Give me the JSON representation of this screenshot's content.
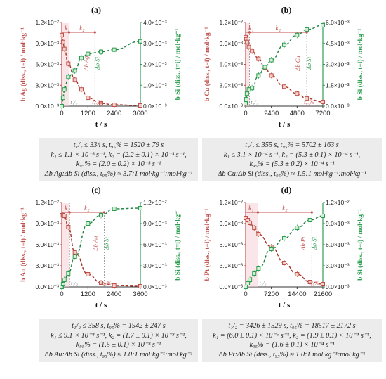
{
  "chart_data": [
    {
      "type": "scatter",
      "label": "(a)",
      "xlabel": "t / s",
      "ylabel_left": "b Ag (diss., t=i) / mol·kg⁻¹",
      "ylabel_right": "b Si (diss., t=i) / mol·kg⁻¹",
      "xlim": [
        0,
        3600
      ],
      "xticks": [
        "0",
        "1200",
        "2400",
        "3600"
      ],
      "ylim_left": [
        0,
        0.012
      ],
      "yticks_left": [
        "0.0×10⁻³",
        "3.0×10⁻³",
        "6.0×10⁻³",
        "9.0×10⁻³",
        "1.2×10⁻²"
      ],
      "ylim_right": [
        0,
        0.004
      ],
      "yticks_right": [
        "0.0×10⁻³",
        "1.0×10⁻³",
        "2.0×10⁻³",
        "3.0×10⁻³",
        "4.0×10⁻³"
      ],
      "series": [
        {
          "name": "Ag",
          "axis": "left",
          "color": "#c0504d",
          "x": [
            0,
            60,
            120,
            300,
            600,
            900,
            1200,
            1800,
            2400,
            3600
          ],
          "y": [
            0.0102,
            0.0092,
            0.0082,
            0.0061,
            0.0038,
            0.0024,
            0.0012,
            0.0004,
            0.0002,
            0.0001
          ]
        },
        {
          "name": "Si",
          "axis": "right",
          "color": "#2e9e50",
          "x": [
            0,
            60,
            120,
            300,
            600,
            900,
            1200,
            1800,
            2400,
            3600
          ],
          "y": [
            0.0,
            0.0004,
            0.0008,
            0.0014,
            0.0017,
            0.0023,
            0.0025,
            0.0026,
            0.0027,
            0.0031
          ]
        }
      ],
      "rate_labels": [
        "k₁",
        "k₂"
      ],
      "annotations": [
        "t₁/₂",
        "t₉₅%",
        "Δb Ag",
        "Δb Si"
      ],
      "t_half": 334,
      "t_95": 1520,
      "caption": [
        "t₁/₂ ≤ 334 s, t₉₅% = 1520 ± 79 s",
        "k₁ ≤ 1.1 × 10⁻³ s⁻¹, k₂ = (2.2 ± 0.1) × 10⁻³ s⁻¹,",
        "k₉₅% = (2.0 ± 0.2) × 10⁻³ s⁻¹",
        "Δb Ag:Δb Si (diss., t₉₅%) ≈ 3.7:1 mol·kg⁻¹:mol·kg⁻¹"
      ]
    },
    {
      "type": "scatter",
      "label": "(b)",
      "xlabel": "t / s",
      "ylabel_left": "b Cu (diss., t=i) / mol·kg⁻¹",
      "ylabel_right": "b Si (diss., t=i) / mol·kg⁻¹",
      "xlim": [
        0,
        7200
      ],
      "xticks": [
        "0",
        "2400",
        "4800",
        "7200"
      ],
      "ylim_left": [
        0,
        0.012
      ],
      "yticks_left": [
        "0.0×10⁻³",
        "3.0×10⁻³",
        "6.0×10⁻³",
        "9.0×10⁻³",
        "1.2×10⁻²"
      ],
      "ylim_right": [
        0,
        0.006
      ],
      "yticks_right": [
        "0.0×10⁻³",
        "1.5×10⁻³",
        "3.0×10⁻³",
        "4.5×10⁻³",
        "6.0×10⁻³"
      ],
      "series": [
        {
          "name": "Cu",
          "axis": "left",
          "color": "#c0504d",
          "x": [
            0,
            60,
            120,
            300,
            600,
            1200,
            1800,
            2400,
            3600,
            4800,
            5700,
            7200
          ],
          "y": [
            0.0099,
            0.0096,
            0.0092,
            0.0085,
            0.0079,
            0.0068,
            0.0055,
            0.0044,
            0.0028,
            0.0018,
            0.0011,
            0.0006
          ]
        },
        {
          "name": "Si",
          "axis": "right",
          "color": "#2e9e50",
          "x": [
            0,
            60,
            120,
            300,
            600,
            1200,
            1800,
            2400,
            3600,
            4800,
            5700,
            7200
          ],
          "y": [
            0.0002,
            0.0005,
            0.0009,
            0.0012,
            0.0013,
            0.0022,
            0.0028,
            0.0033,
            0.0044,
            0.0051,
            0.0055,
            0.0058
          ]
        }
      ],
      "rate_labels": [
        "k₁",
        "k₂"
      ],
      "annotations": [
        "t₁/₂",
        "t₉₅%",
        "Δb Cu",
        "Δb Si"
      ],
      "t_half": 355,
      "t_95": 5702,
      "caption": [
        "t₁/₂ ≤ 355 s, t₉₅% = 5702 ± 163 s",
        "k₁ ≤ 3.1 × 10⁻⁴ s⁻¹, k₂ = (5.3 ± 0.1) × 10⁻⁴ s⁻¹,",
        "k₉₅% = (5.3 ± 0.2) × 10⁻⁴ s⁻¹",
        "Δb Cu:Δb Si (diss., t₉₅%) ≈ 1.5:1 mol·kg⁻¹:mol·kg⁻¹"
      ]
    },
    {
      "type": "scatter",
      "label": "(c)",
      "xlabel": "t / s",
      "ylabel_left": "b Au (diss., t=i) / mol·kg⁻¹",
      "ylabel_right": "b Si (diss., t=i) / mol·kg⁻¹",
      "xlim": [
        0,
        3600
      ],
      "xticks": [
        "0",
        "1200",
        "2400",
        "3600"
      ],
      "ylim_left": [
        0,
        0.012
      ],
      "yticks_left": [
        "0.0×10⁻³",
        "3.0×10⁻³",
        "6.0×10⁻³",
        "9.0×10⁻³",
        "1.2×10⁻²"
      ],
      "ylim_right": [
        0,
        0.012
      ],
      "yticks_right": [
        "0.0×10⁻³",
        "3.0×10⁻³",
        "6.0×10⁻³",
        "9.0×10⁻³",
        "1.2×10⁻²"
      ],
      "series": [
        {
          "name": "Au",
          "axis": "left",
          "color": "#c0504d",
          "x": [
            0,
            60,
            120,
            300,
            600,
            1200,
            1800,
            2400,
            3600
          ],
          "y": [
            0.0102,
            0.0102,
            0.0101,
            0.0085,
            0.0049,
            0.0018,
            0.0006,
            0.0002,
            0.0001
          ]
        },
        {
          "name": "Si",
          "axis": "right",
          "color": "#2e9e50",
          "x": [
            0,
            60,
            120,
            300,
            600,
            1200,
            1800,
            2400,
            3600
          ],
          "y": [
            0.0,
            0.0004,
            0.001,
            0.0019,
            0.0043,
            0.009,
            0.0102,
            0.0111,
            0.0112
          ]
        }
      ],
      "rate_labels": [
        "k₁",
        "k₂"
      ],
      "annotations": [
        "t₁/₂",
        "t₉₅%",
        "Δb Au",
        "Δb Si"
      ],
      "t_half": 358,
      "t_95": 1942,
      "caption": [
        "t₁/₂ ≤ 358 s, t₉₅% = 1942 ± 247 s",
        "k₁ ≤ 9.1 × 10⁻⁴ s⁻¹, k₂ = (1.7 ± 0.1) × 10⁻³ s⁻¹,",
        "k₉₅% = (1.5 ± 0.1) × 10⁻³ s⁻¹",
        "Δb Au:Δb Si (diss., t₉₅%) ≈ 1.0:1 mol·kg⁻¹:mol·kg⁻¹"
      ]
    },
    {
      "type": "scatter",
      "label": "(d)",
      "xlabel": "t / s",
      "ylabel_left": "b Pt (diss., t=i) / mol·kg⁻¹",
      "ylabel_right": "b Si (diss., t=i) / mol·kg⁻¹",
      "xlim": [
        0,
        21600
      ],
      "xticks": [
        "0",
        "7200",
        "14400",
        "21600"
      ],
      "ylim_left": [
        0,
        0.012
      ],
      "yticks_left": [
        "0.0×10⁻³",
        "3.0×10⁻³",
        "6.0×10⁻³",
        "9.0×10⁻³",
        "1.2×10⁻²"
      ],
      "ylim_right": [
        0,
        0.012
      ],
      "yticks_right": [
        "0.0×10⁻³",
        "3.0×10⁻³",
        "6.0×10⁻³",
        "9.0×10⁻³",
        "1.2×10⁻²"
      ],
      "series": [
        {
          "name": "Pt",
          "axis": "left",
          "color": "#c0504d",
          "x": [
            0,
            600,
            1200,
            2400,
            3600,
            7200,
            10800,
            14400,
            18000,
            21600
          ],
          "y": [
            0.0098,
            0.0095,
            0.0091,
            0.0084,
            0.0075,
            0.0057,
            0.0034,
            0.0018,
            0.0007,
            0.0004
          ]
        },
        {
          "name": "Si",
          "axis": "right",
          "color": "#2e9e50",
          "x": [
            0,
            600,
            1200,
            2400,
            3600,
            7200,
            10800,
            14400,
            18000,
            21600
          ],
          "y": [
            0.0,
            0.0005,
            0.001,
            0.0019,
            0.0026,
            0.0054,
            0.0069,
            0.0084,
            0.0095,
            0.0101
          ]
        }
      ],
      "rate_labels": [
        "k₁",
        "k₂"
      ],
      "annotations": [
        "t₁/₂",
        "t₉₅%",
        "Δb Pt",
        "Δb Si"
      ],
      "t_half": 3426,
      "t_95": 18517,
      "caption": [
        "t₁/₂ = 3426 ± 1529 s, t₉₅% = 18517 ± 2172 s",
        "k₁ = (6.0 ± 0.1) × 10⁻⁵ s⁻¹, k₂ = (1.9 ± 0.1) × 10⁻⁴ s⁻¹,",
        "k₉₅% = (1.6 ± 0.1) × 10⁻⁴ s⁻¹",
        "Δb Pt:Δb Si (diss., t₉₅%) ≈ 1.0:1 mol·kg⁻¹:mol·kg⁻¹"
      ]
    }
  ]
}
